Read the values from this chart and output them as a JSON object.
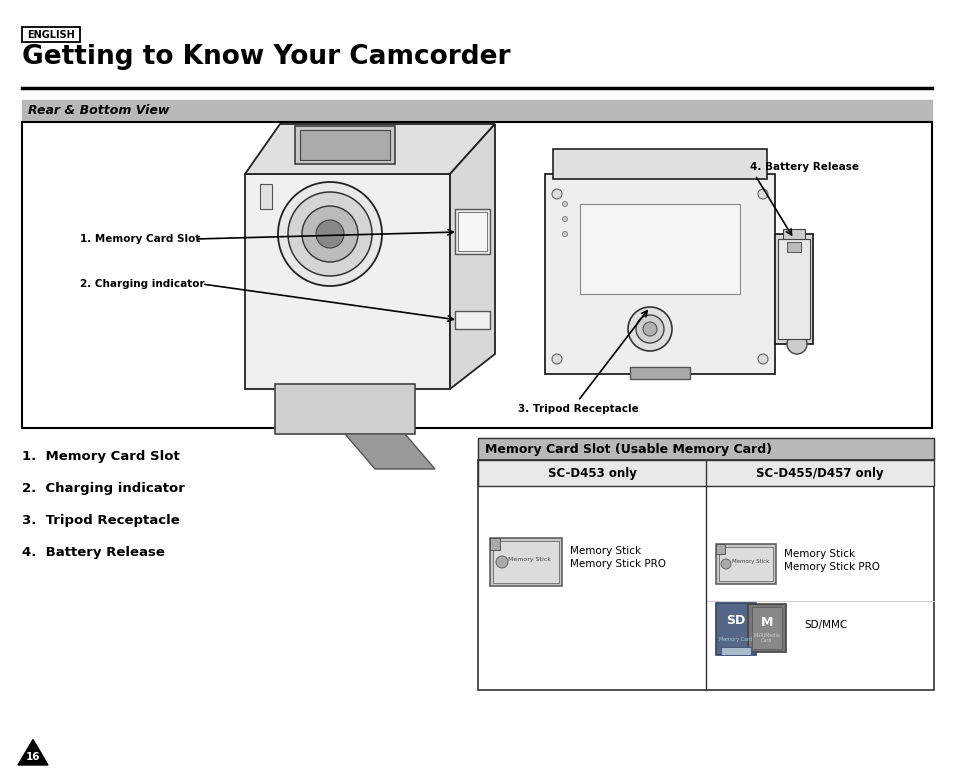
{
  "title": "Getting to Know Your Camcorder",
  "language_label": "ENGLISH",
  "section_header": "Rear & Bottom View",
  "bg_color": "#ffffff",
  "section_header_bg": "#b8b8b8",
  "diagram_box_bg": "#ffffff",
  "labels_left": [
    "1.  Memory Card Slot",
    "2.  Charging indicator",
    "3.  Tripod Receptacle",
    "4.  Battery Release"
  ],
  "table_header": "Memory Card Slot (Usable Memory Card)",
  "table_header_bg": "#b8b8b8",
  "col1_header": "SC-D453 only",
  "col2_header": "SC-D455/D457 only",
  "page_number": "16",
  "annot_memory_card": "1. Memory Card Slot",
  "annot_charging": "2. Charging indicator",
  "annot_battery": "4. Battery Release",
  "annot_tripod": "3. Tripod Receptacle"
}
